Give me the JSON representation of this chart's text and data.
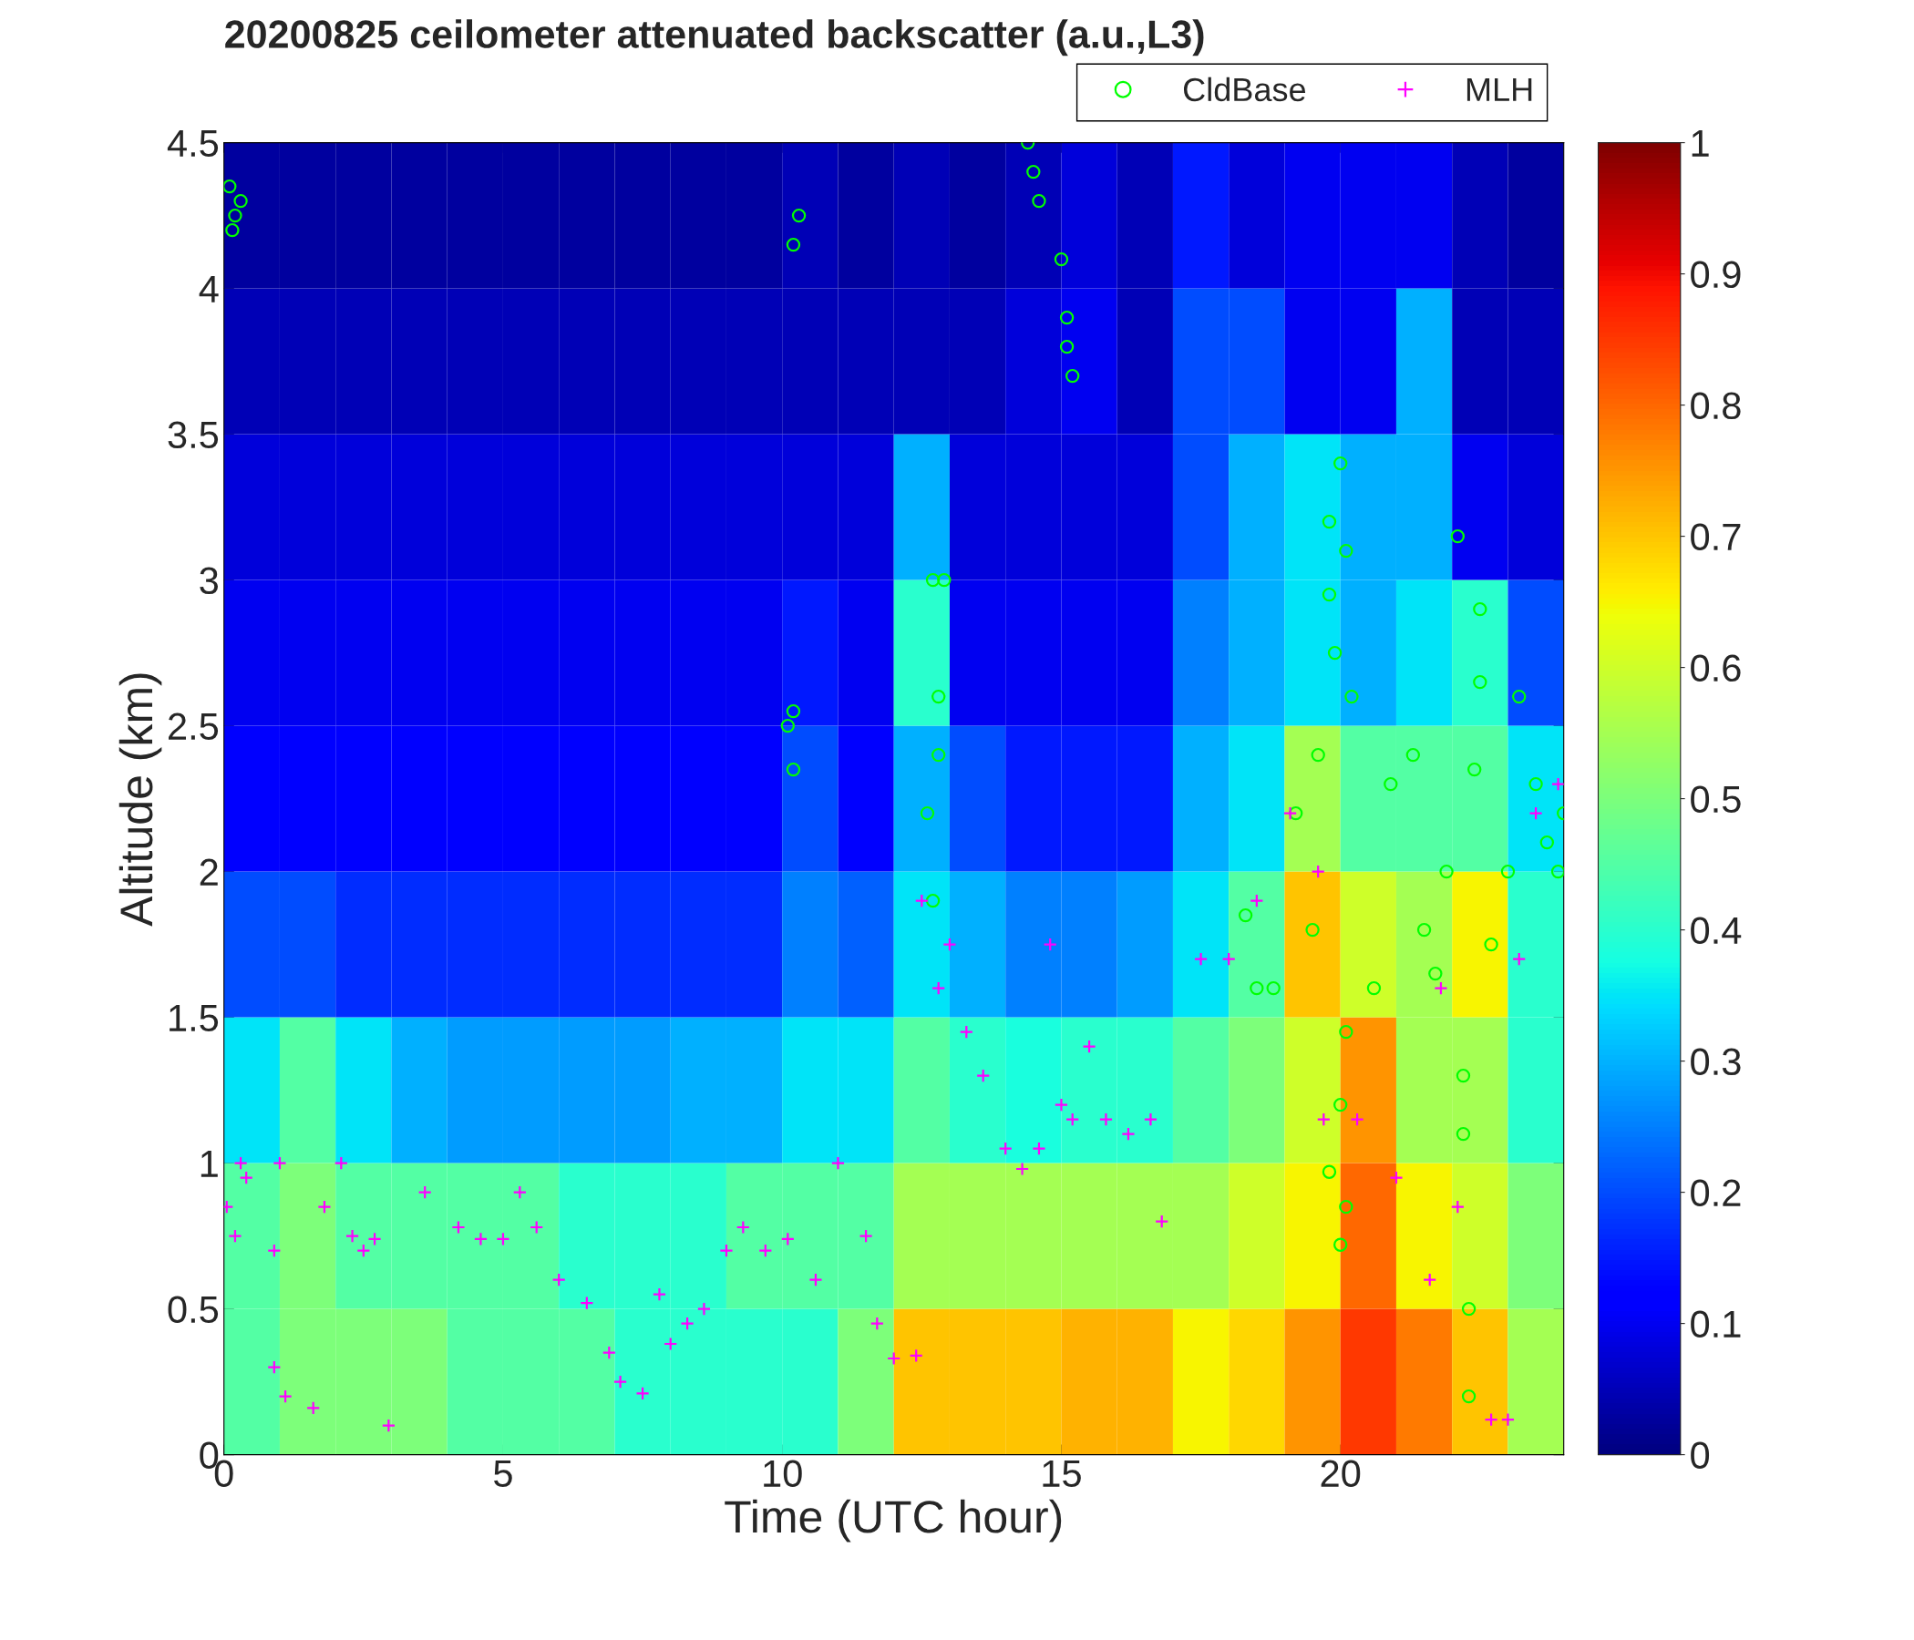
{
  "chart_data": {
    "type": "heatmap",
    "title": "20200825 ceilometer attenuated backscatter (a.u.,L3)",
    "xlabel": "Time (UTC hour)",
    "ylabel": "Altitude (km)",
    "xlim": [
      0,
      24
    ],
    "ylim": [
      0,
      4.5
    ],
    "xticks": [
      0,
      5,
      10,
      15,
      20
    ],
    "yticks": [
      0,
      0.5,
      1,
      1.5,
      2,
      2.5,
      3,
      3.5,
      4,
      4.5
    ],
    "clim": [
      0,
      1
    ],
    "cticks": [
      0,
      0.1,
      0.2,
      0.3,
      0.4,
      0.5,
      0.6,
      0.7,
      0.8,
      0.9,
      1
    ],
    "legend": "top right",
    "grid": false,
    "cells": [
      [
        0.03,
        0.03,
        0.03,
        0.03,
        0.03,
        0.03,
        0.03,
        0.03,
        0.03,
        0.03,
        0.05,
        0.03,
        0.05,
        0.03,
        0.05,
        0.08,
        0.05,
        0.15,
        0.08,
        0.1,
        0.1,
        0.1,
        0.05,
        0.03
      ],
      [
        0.05,
        0.05,
        0.05,
        0.05,
        0.05,
        0.05,
        0.05,
        0.05,
        0.05,
        0.05,
        0.05,
        0.05,
        0.05,
        0.05,
        0.08,
        0.1,
        0.05,
        0.2,
        0.2,
        0.1,
        0.1,
        0.3,
        0.05,
        0.05
      ],
      [
        0.08,
        0.08,
        0.08,
        0.08,
        0.08,
        0.08,
        0.08,
        0.08,
        0.08,
        0.08,
        0.08,
        0.08,
        0.3,
        0.08,
        0.08,
        0.08,
        0.08,
        0.2,
        0.3,
        0.35,
        0.3,
        0.3,
        0.1,
        0.08
      ],
      [
        0.1,
        0.1,
        0.1,
        0.1,
        0.1,
        0.1,
        0.1,
        0.1,
        0.1,
        0.1,
        0.15,
        0.1,
        0.4,
        0.1,
        0.1,
        0.1,
        0.1,
        0.25,
        0.3,
        0.35,
        0.3,
        0.35,
        0.4,
        0.2
      ],
      [
        0.12,
        0.12,
        0.12,
        0.12,
        0.12,
        0.12,
        0.12,
        0.12,
        0.12,
        0.12,
        0.2,
        0.12,
        0.3,
        0.2,
        0.15,
        0.15,
        0.15,
        0.3,
        0.35,
        0.55,
        0.45,
        0.45,
        0.45,
        0.35
      ],
      [
        0.2,
        0.2,
        0.17,
        0.17,
        0.17,
        0.17,
        0.17,
        0.17,
        0.17,
        0.17,
        0.25,
        0.22,
        0.35,
        0.3,
        0.25,
        0.25,
        0.28,
        0.35,
        0.45,
        0.7,
        0.6,
        0.55,
        0.65,
        0.4
      ],
      [
        0.35,
        0.45,
        0.35,
        0.3,
        0.28,
        0.28,
        0.28,
        0.28,
        0.3,
        0.3,
        0.35,
        0.35,
        0.45,
        0.4,
        0.38,
        0.4,
        0.4,
        0.45,
        0.5,
        0.6,
        0.75,
        0.55,
        0.55,
        0.4
      ],
      [
        0.45,
        0.5,
        0.45,
        0.45,
        0.45,
        0.45,
        0.4,
        0.4,
        0.4,
        0.45,
        0.45,
        0.45,
        0.55,
        0.55,
        0.55,
        0.55,
        0.55,
        0.55,
        0.6,
        0.65,
        0.8,
        0.65,
        0.6,
        0.5
      ],
      [
        0.45,
        0.5,
        0.5,
        0.5,
        0.45,
        0.45,
        0.45,
        0.4,
        0.4,
        0.4,
        0.4,
        0.5,
        0.7,
        0.7,
        0.7,
        0.72,
        0.72,
        0.65,
        0.68,
        0.75,
        0.85,
        0.78,
        0.7,
        0.55
      ]
    ],
    "series": [
      {
        "name": "CldBase",
        "type": "scatter",
        "marker": "circle",
        "color": "#00ff00",
        "x": [
          0.1,
          0.2,
          0.3,
          0.15,
          10.1,
          10.2,
          10.2,
          10.3,
          10.2,
          12.6,
          12.7,
          12.7,
          12.8,
          12.9,
          12.8,
          14.4,
          14.5,
          14.6,
          15.0,
          15.1,
          15.2,
          15.1,
          18.3,
          18.5,
          18.8,
          19.2,
          19.5,
          19.6,
          19.8,
          19.8,
          19.9,
          20.0,
          20.1,
          20.2,
          20.1,
          20.0,
          19.8,
          20.0,
          20.1,
          20.6,
          20.9,
          21.3,
          21.5,
          21.7,
          21.9,
          22.1,
          22.2,
          22.2,
          22.3,
          22.3,
          22.4,
          22.5,
          22.5,
          22.7,
          23.0,
          23.2,
          23.5,
          23.7,
          23.9,
          24.0
        ],
        "values": [
          4.35,
          4.25,
          4.3,
          4.2,
          2.5,
          2.35,
          2.55,
          4.25,
          4.15,
          2.2,
          1.9,
          3.0,
          2.6,
          3.0,
          2.4,
          4.5,
          4.4,
          4.3,
          4.1,
          3.9,
          3.7,
          3.8,
          1.85,
          1.6,
          1.6,
          2.2,
          1.8,
          2.4,
          3.2,
          2.95,
          2.75,
          3.4,
          3.1,
          2.6,
          1.45,
          1.2,
          0.97,
          0.72,
          0.85,
          1.6,
          2.3,
          2.4,
          1.8,
          1.65,
          2.0,
          3.15,
          1.3,
          1.1,
          0.5,
          0.2,
          2.35,
          2.9,
          2.65,
          1.75,
          2.0,
          2.6,
          2.3,
          2.1,
          2.0,
          2.2
        ]
      },
      {
        "name": "MLH",
        "type": "scatter",
        "marker": "cross",
        "color": "#ff00ff",
        "x": [
          0.05,
          0.2,
          0.3,
          0.4,
          0.9,
          0.9,
          1.0,
          1.1,
          1.6,
          1.8,
          2.1,
          2.3,
          2.5,
          2.7,
          2.95,
          3.6,
          4.2,
          4.6,
          5.0,
          5.3,
          5.6,
          6.0,
          6.5,
          6.9,
          7.1,
          7.5,
          7.8,
          8.0,
          8.3,
          8.6,
          9.0,
          9.3,
          9.7,
          10.1,
          10.6,
          11.0,
          11.5,
          11.7,
          12.0,
          12.4,
          12.5,
          12.8,
          13.0,
          13.3,
          13.6,
          14.0,
          14.3,
          14.6,
          14.8,
          15.0,
          15.2,
          15.5,
          15.8,
          16.2,
          16.6,
          16.8,
          17.5,
          18.0,
          18.5,
          19.1,
          19.6,
          19.7,
          20.3,
          21.0,
          21.6,
          21.8,
          22.1,
          22.7,
          23.0,
          23.2,
          23.5,
          23.9
        ],
        "values": [
          0.85,
          0.75,
          1.0,
          0.95,
          0.7,
          0.3,
          1.0,
          0.2,
          0.16,
          0.85,
          1.0,
          0.75,
          0.7,
          0.74,
          0.1,
          0.9,
          0.78,
          0.74,
          0.74,
          0.9,
          0.78,
          0.6,
          0.52,
          0.35,
          0.25,
          0.21,
          0.55,
          0.38,
          0.45,
          0.5,
          0.7,
          0.78,
          0.7,
          0.74,
          0.6,
          1.0,
          0.75,
          0.45,
          0.33,
          0.34,
          1.9,
          1.6,
          1.75,
          1.45,
          1.3,
          1.05,
          0.98,
          1.05,
          1.75,
          1.2,
          1.15,
          1.4,
          1.15,
          1.1,
          1.15,
          0.8,
          1.7,
          1.7,
          1.9,
          2.2,
          2.0,
          1.15,
          1.15,
          0.95,
          0.6,
          1.6,
          0.85,
          0.12,
          0.12,
          1.7,
          2.2,
          2.3
        ]
      }
    ]
  }
}
